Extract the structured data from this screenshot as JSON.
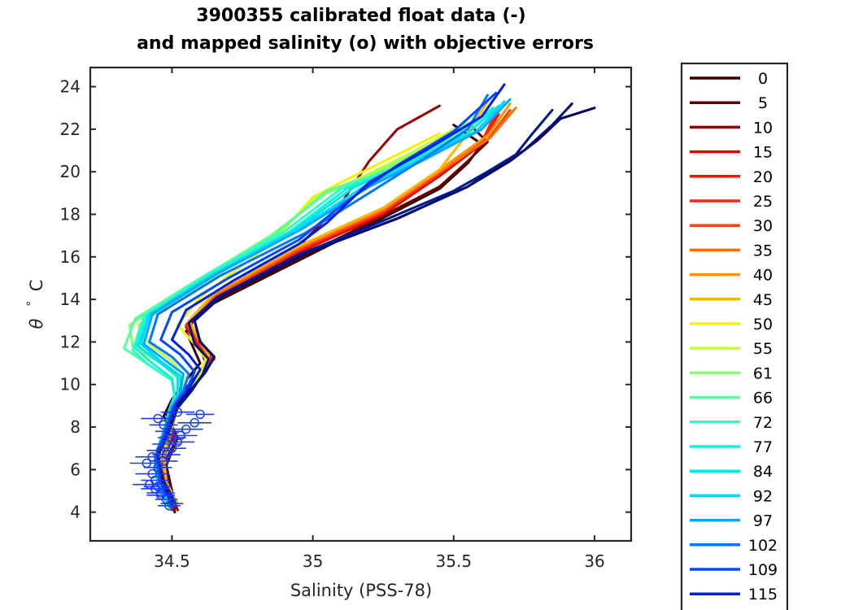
{
  "chart_data": {
    "type": "line",
    "title": [
      "3900355 calibrated float data (-)",
      "and mapped salinity (o) with objective errors"
    ],
    "xlabel": "Salinity (PSS-78)",
    "ylabel_symbol": "θ",
    "ylabel_degree": "°",
    "ylabel_unit": "C",
    "xlim": [
      34.21,
      36.13
    ],
    "ylim": [
      2.65,
      24.9
    ],
    "xticks": [
      34.5,
      35,
      35.5,
      36
    ],
    "xtick_labels": [
      "34.5",
      "35",
      "35.5",
      "36"
    ],
    "yticks": [
      4,
      6,
      8,
      10,
      12,
      14,
      16,
      18,
      20,
      22,
      24
    ],
    "ytick_labels": [
      "4",
      "6",
      "8",
      "10",
      "12",
      "14",
      "16",
      "18",
      "20",
      "22",
      "24"
    ],
    "grid": false,
    "legend_position": "outside-right",
    "legend_entries": [
      "0",
      "5",
      "10",
      "15",
      "20",
      "25",
      "30",
      "35",
      "40",
      "45",
      "50",
      "55",
      "61",
      "66",
      "72",
      "77",
      "84",
      "92",
      "97",
      "102",
      "109",
      "115"
    ],
    "legend_colors": [
      "#3a0000",
      "#650000",
      "#9a0000",
      "#e80000",
      "#ff1100",
      "#ff2a00",
      "#ff4500",
      "#ff6e00",
      "#ff9400",
      "#ffb400",
      "#f2f200",
      "#c2ff34",
      "#86ff70",
      "#55ff9f",
      "#2cffc9",
      "#17f0d8",
      "#00e6e6",
      "#00d7ff",
      "#00aaff",
      "#0078ff",
      "#0049ff",
      "#0020e0"
    ],
    "series": [
      {
        "name": "0",
        "color": "#3a0000",
        "x": [
          34.51,
          34.5,
          34.48,
          34.52,
          34.47,
          34.5,
          34.55,
          34.6,
          34.58,
          34.55,
          34.6,
          34.9,
          35.2,
          35.45,
          35.55,
          35.6,
          35.5
        ],
        "y": [
          4.0,
          5.0,
          6.2,
          7.5,
          8.5,
          9.3,
          10.2,
          11.0,
          11.6,
          12.5,
          13.5,
          15.5,
          17.5,
          19.2,
          20.4,
          21.3,
          22.2
        ]
      },
      {
        "name": "5",
        "color": "#650000",
        "x": [
          34.51,
          34.49,
          34.47,
          34.52,
          34.48,
          34.52,
          34.58,
          34.62,
          34.6,
          34.56,
          34.6,
          34.9,
          35.2,
          35.45,
          35.55,
          35.62,
          35.55
        ],
        "y": [
          4.0,
          5.0,
          6.3,
          7.5,
          8.6,
          9.4,
          10.3,
          11.0,
          11.7,
          12.6,
          13.6,
          15.6,
          17.6,
          19.3,
          20.5,
          21.4,
          22.3
        ]
      },
      {
        "name": "10",
        "color": "#9a0000",
        "x": [
          34.52,
          34.49,
          34.46,
          34.51,
          34.49,
          34.54,
          34.6,
          34.63,
          34.6,
          34.55,
          34.65,
          34.95,
          35.1,
          35.2,
          35.3,
          35.45
        ],
        "y": [
          4.1,
          5.1,
          6.4,
          7.6,
          8.7,
          9.5,
          10.4,
          11.0,
          11.8,
          12.7,
          14.0,
          16.5,
          18.5,
          20.5,
          22.0,
          23.1
        ]
      },
      {
        "name": "15",
        "color": "#e80000",
        "x": [
          34.5,
          34.48,
          34.46,
          34.5,
          34.5,
          34.56,
          34.6,
          34.64,
          34.6,
          34.55,
          34.65,
          34.95,
          35.25,
          35.45,
          35.6,
          35.65
        ],
        "y": [
          4.1,
          5.1,
          6.4,
          7.6,
          8.7,
          9.6,
          10.4,
          11.1,
          11.7,
          12.7,
          14.0,
          16.2,
          18.0,
          19.8,
          21.3,
          22.6
        ]
      },
      {
        "name": "20",
        "color": "#ff1100",
        "x": [
          34.5,
          34.48,
          34.46,
          34.5,
          34.5,
          34.55,
          34.6,
          34.65,
          34.6,
          34.55,
          34.65,
          34.95,
          35.25,
          35.45,
          35.6,
          35.66
        ],
        "y": [
          4.2,
          5.2,
          6.5,
          7.7,
          8.8,
          9.6,
          10.5,
          11.2,
          11.8,
          12.8,
          14.1,
          16.3,
          18.1,
          19.9,
          21.4,
          22.7
        ]
      },
      {
        "name": "25",
        "color": "#ff2a00",
        "x": [
          34.5,
          34.48,
          34.46,
          34.5,
          34.5,
          34.55,
          34.61,
          34.64,
          34.6,
          34.55,
          34.65,
          34.95,
          35.25,
          35.45,
          35.6,
          35.65
        ],
        "y": [
          4.2,
          5.2,
          6.5,
          7.7,
          8.8,
          9.7,
          10.5,
          11.2,
          11.9,
          12.8,
          14.1,
          16.3,
          18.1,
          19.9,
          21.4,
          22.8
        ]
      },
      {
        "name": "30",
        "color": "#ff4500",
        "x": [
          34.51,
          34.48,
          34.47,
          34.5,
          34.51,
          34.56,
          34.61,
          34.63,
          34.6,
          34.56,
          34.65,
          34.95,
          35.25,
          35.45,
          35.62,
          35.7
        ],
        "y": [
          4.3,
          5.3,
          6.6,
          7.8,
          8.9,
          9.7,
          10.6,
          11.3,
          11.9,
          12.9,
          14.2,
          16.4,
          18.2,
          20.0,
          21.5,
          22.9
        ]
      },
      {
        "name": "35",
        "color": "#ff6e00",
        "x": [
          34.51,
          34.48,
          34.47,
          34.5,
          34.51,
          34.56,
          34.61,
          34.63,
          34.6,
          34.56,
          34.65,
          34.95,
          35.25,
          35.45,
          35.63,
          35.72
        ],
        "y": [
          4.3,
          5.3,
          6.6,
          7.8,
          8.9,
          9.8,
          10.6,
          11.3,
          12.0,
          12.9,
          14.2,
          16.4,
          18.2,
          20.0,
          21.6,
          23.0
        ]
      },
      {
        "name": "40",
        "color": "#ff9400",
        "x": [
          34.52,
          34.48,
          34.47,
          34.5,
          34.52,
          34.57,
          34.62,
          34.63,
          34.6,
          34.56,
          34.65,
          34.95,
          35.25,
          35.45,
          35.62,
          35.7
        ],
        "y": [
          4.4,
          5.4,
          6.7,
          7.9,
          9.0,
          9.8,
          10.7,
          11.4,
          12.0,
          13.0,
          14.3,
          16.5,
          18.3,
          20.1,
          21.7,
          23.2
        ]
      },
      {
        "name": "45",
        "color": "#ffb400",
        "x": [
          34.52,
          34.48,
          34.47,
          34.5,
          34.52,
          34.57,
          34.62,
          34.63,
          34.6,
          34.56,
          34.65,
          34.95,
          35.25,
          35.45,
          35.55,
          35.62
        ],
        "y": [
          4.4,
          5.4,
          6.7,
          7.9,
          9.0,
          9.9,
          10.7,
          11.4,
          12.1,
          13.0,
          14.3,
          16.5,
          18.3,
          20.1,
          21.8,
          23.3
        ]
      },
      {
        "name": "50",
        "color": "#f2f200",
        "x": [
          34.5,
          34.47,
          34.46,
          34.49,
          34.51,
          34.55,
          34.6,
          34.62,
          34.58,
          34.52,
          34.6,
          34.85,
          35.0,
          35.1,
          35.3,
          35.45
        ],
        "y": [
          4.2,
          5.2,
          6.5,
          7.7,
          8.8,
          9.6,
          10.5,
          11.2,
          11.9,
          12.8,
          14.1,
          16.6,
          18.8,
          19.5,
          20.8,
          21.8
        ]
      },
      {
        "name": "55",
        "color": "#c2ff34",
        "x": [
          34.5,
          34.47,
          34.45,
          34.48,
          34.5,
          34.53,
          34.55,
          34.5,
          34.42,
          34.38,
          34.6,
          34.85,
          35.02,
          35.15,
          35.35,
          35.5
        ],
        "y": [
          4.2,
          5.2,
          6.5,
          7.7,
          8.8,
          9.6,
          10.3,
          11.1,
          11.9,
          12.8,
          14.6,
          16.8,
          18.9,
          19.6,
          20.9,
          22.0
        ]
      },
      {
        "name": "61",
        "color": "#86ff70",
        "x": [
          34.49,
          34.46,
          34.44,
          34.48,
          34.5,
          34.52,
          34.52,
          34.46,
          34.36,
          34.35,
          34.58,
          34.85,
          35.05,
          35.2,
          35.4,
          35.55
        ],
        "y": [
          4.2,
          5.2,
          6.5,
          7.7,
          8.8,
          9.5,
          10.3,
          11.0,
          11.8,
          12.8,
          14.8,
          17.0,
          19.0,
          19.8,
          21.1,
          22.3
        ]
      },
      {
        "name": "66",
        "color": "#55ff9f",
        "x": [
          34.49,
          34.45,
          34.44,
          34.47,
          34.49,
          34.51,
          34.5,
          34.42,
          34.33,
          34.37,
          34.6,
          34.87,
          35.05,
          35.25,
          35.45,
          35.58
        ],
        "y": [
          4.2,
          5.2,
          6.4,
          7.6,
          8.7,
          9.4,
          10.2,
          10.9,
          11.7,
          13.1,
          15.0,
          17.1,
          19.1,
          20.0,
          21.3,
          22.5
        ]
      },
      {
        "name": "72",
        "color": "#2cffc9",
        "x": [
          34.49,
          34.45,
          34.44,
          34.47,
          34.49,
          34.51,
          34.5,
          34.42,
          34.36,
          34.4,
          34.62,
          34.9,
          35.1,
          35.3,
          35.5,
          35.62
        ],
        "y": [
          4.2,
          5.2,
          6.4,
          7.6,
          8.7,
          9.4,
          10.2,
          10.9,
          11.6,
          13.2,
          15.1,
          17.2,
          19.2,
          20.2,
          21.6,
          22.8
        ]
      },
      {
        "name": "77",
        "color": "#17f0d8",
        "x": [
          34.49,
          34.45,
          34.44,
          34.47,
          34.49,
          34.51,
          34.5,
          34.43,
          34.37,
          34.41,
          34.63,
          34.92,
          35.12,
          35.32,
          35.52,
          35.64
        ],
        "y": [
          4.3,
          5.3,
          6.5,
          7.7,
          8.8,
          9.5,
          10.3,
          11.0,
          11.7,
          13.2,
          15.1,
          17.2,
          19.2,
          20.3,
          21.7,
          23.0
        ]
      },
      {
        "name": "84",
        "color": "#00e6e6",
        "x": [
          34.5,
          34.45,
          34.44,
          34.47,
          34.49,
          34.52,
          34.52,
          34.45,
          34.38,
          34.42,
          34.64,
          34.93,
          35.15,
          35.35,
          35.55,
          35.66
        ],
        "y": [
          4.3,
          5.3,
          6.5,
          7.7,
          8.8,
          9.5,
          10.4,
          11.1,
          11.8,
          13.2,
          15.1,
          17.2,
          19.3,
          20.4,
          21.8,
          23.1
        ]
      },
      {
        "name": "92",
        "color": "#00d7ff",
        "x": [
          34.5,
          34.45,
          34.44,
          34.47,
          34.5,
          34.53,
          34.53,
          34.46,
          34.39,
          34.42,
          34.65,
          34.95,
          35.18,
          35.38,
          35.58,
          35.68
        ],
        "y": [
          4.3,
          5.3,
          6.5,
          7.8,
          8.9,
          9.6,
          10.4,
          11.1,
          11.9,
          13.3,
          15.2,
          17.3,
          19.3,
          20.5,
          21.9,
          23.3
        ]
      },
      {
        "name": "97",
        "color": "#00aaff",
        "x": [
          34.5,
          34.46,
          34.44,
          34.47,
          34.5,
          34.53,
          34.54,
          34.47,
          34.4,
          34.43,
          34.66,
          34.96,
          35.2,
          35.4,
          35.6,
          35.7
        ],
        "y": [
          4.4,
          5.4,
          6.6,
          7.8,
          8.9,
          9.6,
          10.5,
          11.2,
          11.9,
          13.3,
          15.2,
          17.3,
          19.3,
          20.6,
          22.0,
          23.4
        ]
      },
      {
        "name": "102",
        "color": "#0078ff",
        "x": [
          34.5,
          34.46,
          34.44,
          34.48,
          34.5,
          34.54,
          34.56,
          34.5,
          34.42,
          34.45,
          34.67,
          34.97,
          35.2,
          35.38,
          35.55,
          35.62
        ],
        "y": [
          4.4,
          5.4,
          6.6,
          7.8,
          8.9,
          9.7,
          10.5,
          11.3,
          12.0,
          13.3,
          15.1,
          17.1,
          19.0,
          20.5,
          22.0,
          23.6
        ]
      },
      {
        "name": "109",
        "color": "#0049ff",
        "x": [
          34.51,
          34.46,
          34.45,
          34.48,
          34.51,
          34.55,
          34.58,
          34.53,
          34.46,
          34.5,
          34.7,
          34.95,
          35.12,
          35.3,
          35.5,
          35.65
        ],
        "y": [
          4.4,
          5.4,
          6.7,
          7.9,
          9.0,
          9.7,
          10.6,
          11.4,
          12.1,
          13.4,
          15.0,
          16.8,
          18.6,
          20.3,
          21.9,
          23.7
        ]
      },
      {
        "name": "115",
        "color": "#0020e0",
        "x": [
          34.51,
          34.47,
          34.45,
          34.49,
          34.51,
          34.56,
          34.6,
          34.56,
          34.5,
          34.55,
          34.72,
          34.95,
          35.05,
          35.2,
          35.4,
          35.6,
          35.68
        ],
        "y": [
          4.5,
          5.5,
          6.7,
          7.9,
          9.0,
          9.8,
          10.7,
          11.4,
          12.1,
          13.5,
          14.9,
          16.6,
          17.6,
          19.5,
          21.0,
          22.6,
          24.1
        ]
      }
    ],
    "extra_series": [
      {
        "name": "",
        "color": "#00005a",
        "x": [
          34.5,
          34.47,
          34.45,
          34.49,
          34.52,
          34.57,
          34.62,
          34.65,
          34.6,
          34.58,
          34.68,
          34.98,
          35.3,
          35.55,
          35.7,
          35.8,
          35.88,
          36.0
        ],
        "y": [
          4.4,
          5.4,
          6.7,
          7.9,
          9.0,
          9.8,
          10.6,
          11.3,
          12.0,
          13.0,
          14.2,
          16.2,
          17.8,
          19.3,
          20.5,
          21.5,
          22.5,
          23.0
        ]
      },
      {
        "name": "",
        "color": "#000b78",
        "x": [
          34.5,
          34.47,
          34.45,
          34.49,
          34.52,
          34.57,
          34.62,
          34.65,
          34.6,
          34.58,
          34.68,
          34.98,
          35.3,
          35.55,
          35.65,
          35.75,
          35.85,
          35.92
        ],
        "y": [
          4.4,
          5.4,
          6.7,
          7.9,
          9.0,
          9.8,
          10.6,
          11.3,
          12.0,
          13.0,
          14.2,
          16.2,
          17.8,
          19.3,
          20.2,
          21.0,
          22.2,
          23.2
        ]
      },
      {
        "name": "",
        "color": "#001a8c",
        "x": [
          34.5,
          34.47,
          34.45,
          34.49,
          34.52,
          34.57,
          34.61,
          34.63,
          34.58,
          34.56,
          34.66,
          34.95,
          35.25,
          35.5,
          35.62,
          35.72,
          35.78,
          35.85
        ],
        "y": [
          4.3,
          5.3,
          6.6,
          7.8,
          8.9,
          9.7,
          10.5,
          11.2,
          11.9,
          12.9,
          14.1,
          16.1,
          17.7,
          19.1,
          20.0,
          20.8,
          21.8,
          22.9
        ]
      }
    ],
    "error_markers": {
      "color": "#1a3cff",
      "s": [
        34.49,
        34.48,
        34.46,
        34.45,
        34.44,
        34.43,
        34.45,
        34.47,
        34.48,
        34.5,
        34.52,
        34.53,
        34.55,
        34.58,
        34.5,
        34.46,
        34.44,
        34.42,
        34.41,
        34.43,
        34.46,
        34.48,
        34.5,
        34.49,
        34.47,
        34.45,
        34.52,
        34.6
      ],
      "t": [
        4.3,
        4.6,
        4.9,
        5.2,
        5.5,
        5.8,
        6.1,
        6.4,
        6.7,
        7.0,
        7.3,
        7.6,
        7.9,
        8.2,
        4.4,
        4.8,
        5.1,
        5.3,
        6.3,
        6.6,
        6.9,
        7.2,
        7.5,
        7.8,
        8.1,
        8.4,
        8.7,
        8.6
      ],
      "err": [
        0.04,
        0.04,
        0.05,
        0.05,
        0.05,
        0.06,
        0.05,
        0.05,
        0.05,
        0.05,
        0.06,
        0.06,
        0.06,
        0.06,
        0.04,
        0.05,
        0.05,
        0.06,
        0.06,
        0.06,
        0.05,
        0.05,
        0.05,
        0.05,
        0.05,
        0.06,
        0.06,
        0.05
      ]
    }
  }
}
